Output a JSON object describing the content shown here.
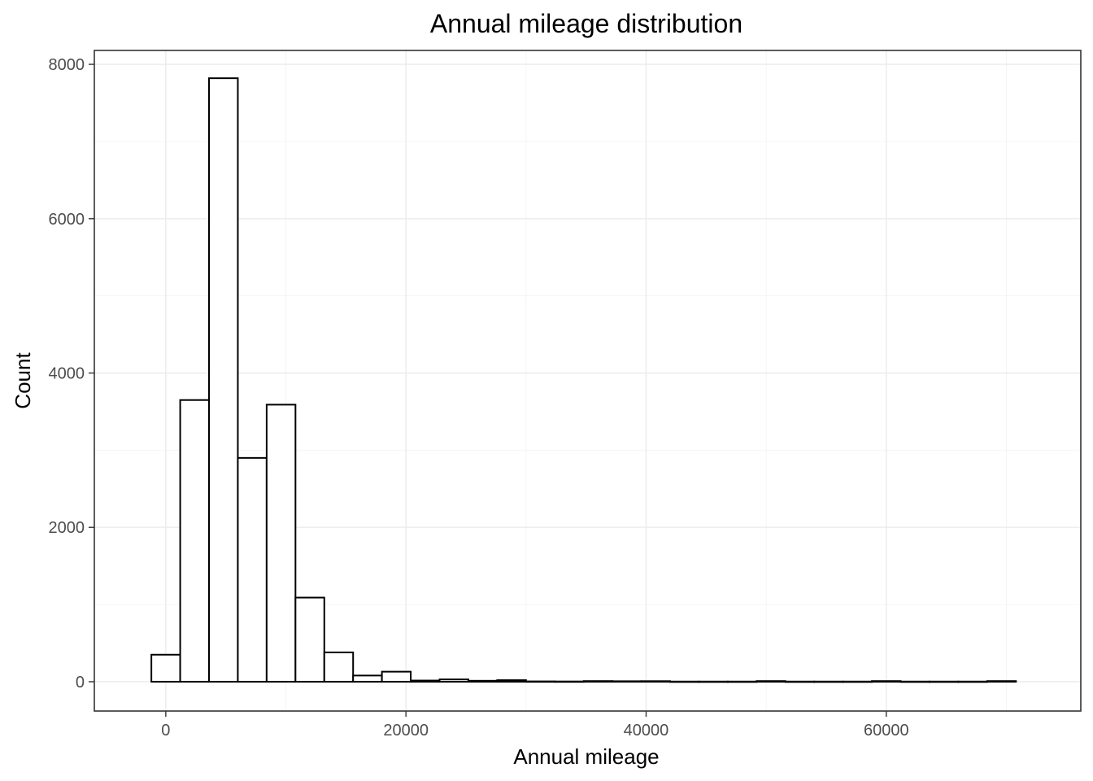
{
  "chart_data": {
    "type": "bar",
    "title": "Annual mileage distribution",
    "xlabel": "Annual mileage",
    "ylabel": "Count",
    "xlim": [
      -5950,
      76200
    ],
    "ylim": [
      -380,
      8180
    ],
    "x_ticks": [
      0,
      20000,
      40000,
      60000
    ],
    "y_ticks": [
      0,
      2000,
      4000,
      6000,
      8000
    ],
    "bin_width": 2400,
    "grid": true,
    "colors": {
      "bar_fill": "#ffffff",
      "bar_outline": "#000000",
      "grid": "#ebebeb",
      "panel_border": "#333333"
    },
    "bins": [
      {
        "x_start": -1200,
        "x_end": 1200,
        "count": 350
      },
      {
        "x_start": 1200,
        "x_end": 3600,
        "count": 3650
      },
      {
        "x_start": 3600,
        "x_end": 6000,
        "count": 7820
      },
      {
        "x_start": 6000,
        "x_end": 8400,
        "count": 2900
      },
      {
        "x_start": 8400,
        "x_end": 10800,
        "count": 3590
      },
      {
        "x_start": 10800,
        "x_end": 13200,
        "count": 1090
      },
      {
        "x_start": 13200,
        "x_end": 15600,
        "count": 380
      },
      {
        "x_start": 15600,
        "x_end": 18000,
        "count": 80
      },
      {
        "x_start": 18000,
        "x_end": 20400,
        "count": 130
      },
      {
        "x_start": 20400,
        "x_end": 22800,
        "count": 15
      },
      {
        "x_start": 22800,
        "x_end": 25200,
        "count": 30
      },
      {
        "x_start": 25200,
        "x_end": 27600,
        "count": 12
      },
      {
        "x_start": 27600,
        "x_end": 30000,
        "count": 20
      },
      {
        "x_start": 30000,
        "x_end": 32400,
        "count": 4
      },
      {
        "x_start": 32400,
        "x_end": 34800,
        "count": 3
      },
      {
        "x_start": 34800,
        "x_end": 37200,
        "count": 8
      },
      {
        "x_start": 37200,
        "x_end": 39600,
        "count": 6
      },
      {
        "x_start": 39600,
        "x_end": 42000,
        "count": 7
      },
      {
        "x_start": 42000,
        "x_end": 44400,
        "count": 2
      },
      {
        "x_start": 44400,
        "x_end": 46800,
        "count": 2
      },
      {
        "x_start": 46800,
        "x_end": 49200,
        "count": 2
      },
      {
        "x_start": 49200,
        "x_end": 51600,
        "count": 8
      },
      {
        "x_start": 51600,
        "x_end": 54000,
        "count": 2
      },
      {
        "x_start": 54000,
        "x_end": 56400,
        "count": 2
      },
      {
        "x_start": 56400,
        "x_end": 58800,
        "count": 2
      },
      {
        "x_start": 58800,
        "x_end": 61200,
        "count": 8
      },
      {
        "x_start": 61200,
        "x_end": 63600,
        "count": 2
      },
      {
        "x_start": 63600,
        "x_end": 66000,
        "count": 2
      },
      {
        "x_start": 66000,
        "x_end": 68400,
        "count": 2
      },
      {
        "x_start": 68400,
        "x_end": 70800,
        "count": 8
      }
    ]
  }
}
